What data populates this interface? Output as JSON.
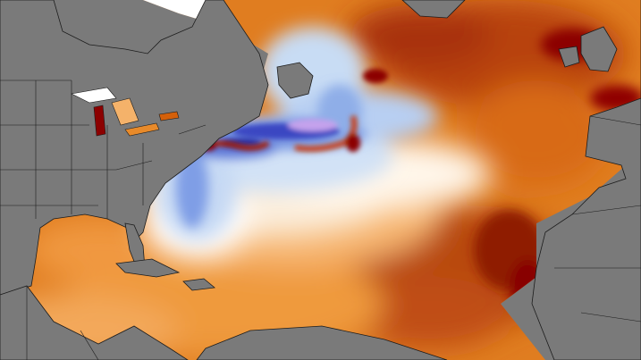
{
  "map": {
    "kind": "sea-surface-temperature-anomaly",
    "region": "north-atlantic",
    "palette": {
      "land": "#7a7a7a",
      "borders": "#1c1c1c",
      "ice": "#ffffff",
      "extreme_warm": "#8c0000",
      "very_warm": "#b01e00",
      "warm": "#d4600a",
      "mild_warm": "#e88a2a",
      "slightly_warm": "#f4b26a",
      "near_zero": "#fbe7cf",
      "neutral": "#ffffff",
      "slightly_cool": "#cfe0f6",
      "cool": "#8fb0ea",
      "cold": "#3d58cc",
      "very_cold": "#2a2fa8",
      "extreme_cold": "#c9a4ee"
    },
    "visible_text": []
  }
}
